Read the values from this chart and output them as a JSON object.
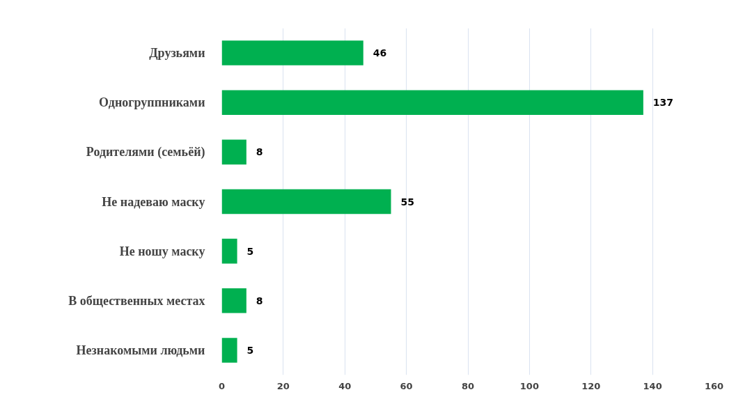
{
  "chart_data": {
    "type": "bar",
    "orientation": "horizontal",
    "categories": [
      "Друзьями",
      "Одногруппниками",
      "Родителями (семьёй)",
      "Не надеваю маску",
      "Не ношу маску",
      "В общественных местах",
      "Незнакомыми людьми"
    ],
    "values": [
      46,
      137,
      8,
      55,
      5,
      8,
      5
    ],
    "color": "#00b050",
    "xlim": [
      0,
      160
    ],
    "xticks": [
      0,
      20,
      40,
      60,
      80,
      100,
      120,
      140,
      160
    ],
    "grid": "x",
    "data_labels": true
  }
}
